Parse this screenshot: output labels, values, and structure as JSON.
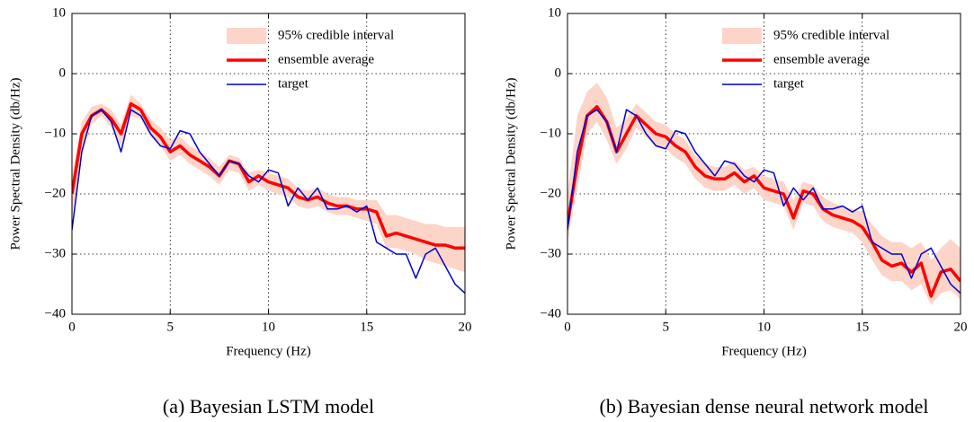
{
  "chart_data": [
    {
      "type": "line",
      "caption": "(a) Bayesian LSTM model",
      "xlabel": "Frequency (Hz)",
      "ylabel": "Power Spectral Density (db/Hz)",
      "xlim": [
        0,
        20
      ],
      "xticks": [
        0,
        5,
        10,
        15,
        20
      ],
      "ylim": [
        -40,
        10
      ],
      "yticks": [
        {
          "value": -40,
          "label": "−40"
        },
        {
          "value": -30,
          "label": "−30"
        },
        {
          "value": -20,
          "label": "−20"
        },
        {
          "value": -10,
          "label": "−10"
        },
        0,
        10
      ],
      "grid": true,
      "legend": "upper right",
      "x": [
        0,
        0.5,
        1,
        1.5,
        2,
        2.5,
        3,
        3.5,
        4,
        4.5,
        5,
        5.5,
        6,
        6.5,
        7,
        7.5,
        8,
        8.5,
        9,
        9.5,
        10,
        10.5,
        11,
        11.5,
        12,
        12.5,
        13,
        13.5,
        14,
        14.5,
        15,
        15.5,
        16,
        16.5,
        17,
        17.5,
        18,
        18.5,
        19,
        19.5,
        20
      ],
      "series": [
        {
          "name": "95% credible interval",
          "color": "#fdd5c8",
          "upper": [
            -17,
            -8,
            -5.5,
            -5,
            -6,
            -8.5,
            -3.5,
            -5,
            -7.5,
            -9,
            -11,
            -10.5,
            -12,
            -13,
            -14,
            -15.5,
            -13.5,
            -14,
            -16.5,
            -16,
            -16.5,
            -17,
            -17.5,
            -19,
            -19.5,
            -19,
            -20,
            -20.5,
            -20.5,
            -21,
            -21,
            -21,
            -23.5,
            -23.5,
            -24,
            -24.5,
            -25,
            -25,
            -25.5,
            -25.5,
            -25.5
          ],
          "lower": [
            -24,
            -13,
            -8.5,
            -7,
            -9,
            -12,
            -7,
            -7.5,
            -10.5,
            -12,
            -14.5,
            -13.5,
            -15,
            -16,
            -17,
            -18.5,
            -16,
            -16.5,
            -19.5,
            -18.5,
            -19.5,
            -20,
            -20.5,
            -22,
            -22.5,
            -22,
            -23,
            -23.5,
            -23.5,
            -24,
            -24.5,
            -25,
            -29,
            -29,
            -29.5,
            -30,
            -31,
            -31.5,
            -32,
            -32.5,
            -33
          ]
        },
        {
          "name": "ensemble average",
          "color": "#ff0000",
          "width": 3.5,
          "values": [
            -20,
            -10,
            -7,
            -6,
            -7.5,
            -10,
            -5,
            -6,
            -9,
            -10.5,
            -13,
            -12,
            -13.5,
            -14.5,
            -15.5,
            -17,
            -14.5,
            -15,
            -18,
            -17,
            -18,
            -18.5,
            -19,
            -20.5,
            -21,
            -20.5,
            -21.5,
            -22,
            -22,
            -22.5,
            -22.5,
            -23,
            -27,
            -26.5,
            -27,
            -27.5,
            -28,
            -28.5,
            -28.5,
            -29,
            -29
          ]
        },
        {
          "name": "target",
          "color": "#0000cc",
          "width": 1.5,
          "values": [
            -26,
            -13,
            -7,
            -6,
            -8,
            -13,
            -6,
            -7,
            -10,
            -12,
            -12.5,
            -9.5,
            -10,
            -13,
            -15,
            -17,
            -14.5,
            -15,
            -17,
            -18,
            -16,
            -16.5,
            -22,
            -19,
            -21,
            -19,
            -22.5,
            -22.5,
            -22,
            -23,
            -22,
            -28,
            -29,
            -30,
            -30,
            -34,
            -30,
            -29,
            -32,
            -35,
            -36.5
          ]
        }
      ]
    },
    {
      "type": "line",
      "caption": "(b) Bayesian dense neural network model",
      "xlabel": "Frequency (Hz)",
      "ylabel": "Power Spectral Density (db/Hz)",
      "xlim": [
        0,
        20
      ],
      "xticks": [
        0,
        5,
        10,
        15,
        20
      ],
      "ylim": [
        -40,
        10
      ],
      "yticks": [
        {
          "value": -40,
          "label": "−40"
        },
        {
          "value": -30,
          "label": "−30"
        },
        {
          "value": -20,
          "label": "−20"
        },
        {
          "value": -10,
          "label": "−10"
        },
        0,
        10
      ],
      "grid": true,
      "legend": "upper right",
      "x": [
        0,
        0.5,
        1,
        1.5,
        2,
        2.5,
        3,
        3.5,
        4,
        4.5,
        5,
        5.5,
        6,
        6.5,
        7,
        7.5,
        8,
        8.5,
        9,
        9.5,
        10,
        10.5,
        11,
        11.5,
        12,
        12.5,
        13,
        13.5,
        14,
        14.5,
        15,
        15.5,
        16,
        16.5,
        17,
        17.5,
        18,
        18.5,
        19,
        19.5,
        20
      ],
      "series": [
        {
          "name": "95% credible interval",
          "color": "#fdd5c8",
          "upper": [
            -20,
            -7,
            -3,
            -1.5,
            -4,
            -9,
            -7.5,
            -5,
            -6.5,
            -8,
            -8.5,
            -10,
            -11,
            -13.5,
            -15,
            -15.5,
            -15.5,
            -14.5,
            -16,
            -15.5,
            -17,
            -17.5,
            -18,
            -21,
            -18,
            -18.5,
            -20.5,
            -21.5,
            -22,
            -22.5,
            -23,
            -25,
            -27,
            -28,
            -28,
            -29,
            -28,
            -31,
            -29,
            -27.5,
            -29
          ],
          "lower": [
            -28,
            -19,
            -10,
            -8,
            -11,
            -15,
            -12.5,
            -9,
            -10.5,
            -12,
            -12.5,
            -14,
            -15,
            -17.5,
            -19,
            -19.5,
            -19.5,
            -18.5,
            -20,
            -19,
            -21,
            -21.5,
            -22,
            -26,
            -21.5,
            -22,
            -24.5,
            -25.5,
            -26,
            -26.5,
            -28,
            -31,
            -33.5,
            -34.5,
            -34.5,
            -36,
            -35,
            -38.5,
            -36.5,
            -36,
            -37.5
          ]
        },
        {
          "name": "ensemble average",
          "color": "#ff0000",
          "width": 3.5,
          "values": [
            -25,
            -15,
            -7,
            -5.5,
            -8,
            -13,
            -10,
            -7,
            -8.5,
            -10,
            -10.5,
            -12,
            -13,
            -15.5,
            -17,
            -17.5,
            -17.5,
            -16.5,
            -18,
            -17,
            -19,
            -19.5,
            -20,
            -24,
            -19.5,
            -20,
            -22.5,
            -23.5,
            -24,
            -24.5,
            -25.5,
            -28,
            -31,
            -32,
            -31.5,
            -33,
            -31.5,
            -37,
            -33,
            -32.5,
            -34.5
          ]
        },
        {
          "name": "target",
          "color": "#0000cc",
          "width": 1.5,
          "values": [
            -26,
            -13,
            -7,
            -6,
            -8,
            -13,
            -6,
            -7,
            -10,
            -12,
            -12.5,
            -9.5,
            -10,
            -13,
            -15,
            -17,
            -14.5,
            -15,
            -17,
            -18,
            -16,
            -16.5,
            -22,
            -19,
            -21,
            -19,
            -22.5,
            -22.5,
            -22,
            -23,
            -22,
            -28,
            -29,
            -30,
            -30,
            -34,
            -30,
            -29,
            -32,
            -35,
            -36.5
          ]
        }
      ]
    }
  ]
}
